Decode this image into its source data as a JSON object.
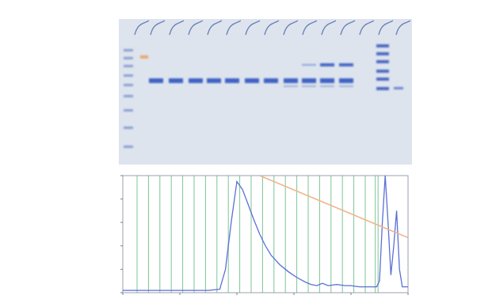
{
  "chart_data": {
    "type": "line",
    "xlim": [
      0,
      100
    ],
    "ylim": [
      0,
      100
    ],
    "xticks": [
      0,
      20,
      40,
      60,
      80,
      100
    ],
    "yticks": [
      0,
      20,
      40,
      60,
      80,
      100
    ],
    "tick_labels": false,
    "grid": false,
    "fractions": [
      5,
      9,
      13,
      17,
      21,
      25,
      29,
      33,
      37,
      41,
      45,
      49,
      53,
      57,
      61,
      65,
      69,
      73,
      77,
      81,
      85,
      88.5,
      89.5
    ],
    "series": [
      {
        "color": "#5b6fd6",
        "line_style": "solid",
        "x": [
          0,
          5,
          10,
          15,
          20,
          25,
          30,
          34,
          36,
          38,
          40,
          42,
          44,
          46,
          48,
          50,
          52,
          55,
          58,
          61,
          64,
          66,
          68,
          70,
          72,
          75,
          78,
          80,
          83,
          86,
          89,
          90,
          91,
          92,
          93,
          94,
          95,
          96,
          97,
          98,
          100
        ],
        "values": [
          2,
          2,
          2,
          2,
          2,
          2,
          2,
          3,
          20,
          60,
          95,
          88,
          75,
          62,
          50,
          40,
          32,
          24,
          18,
          13,
          9,
          7,
          6,
          8,
          6,
          7,
          6,
          6,
          5,
          5,
          5,
          10,
          60,
          100,
          60,
          15,
          40,
          70,
          20,
          5,
          5
        ]
      },
      {
        "color": "#f2b48c",
        "line_style": "solid",
        "x": [
          48,
          100
        ],
        "values": [
          100,
          47
        ]
      }
    ]
  }
}
